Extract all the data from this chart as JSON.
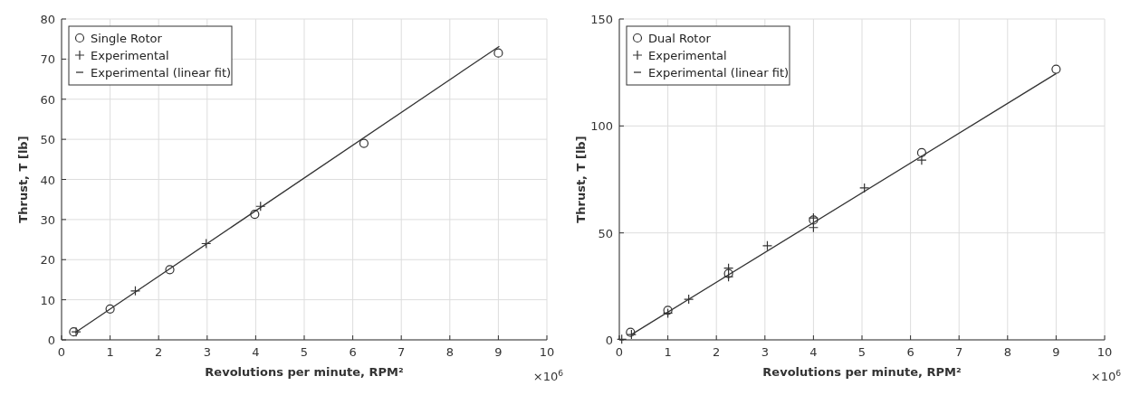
{
  "chart_data": [
    {
      "type": "scatter",
      "xlabel": "Revolutions per minute, RPM²",
      "ylabel": "Thrust, T [lb]",
      "annotations": [
        "×10$^{6}$"
      ],
      "xlim": [
        0,
        10
      ],
      "xticks": [
        0,
        1,
        2,
        3,
        4,
        5,
        6,
        7,
        8,
        9,
        10
      ],
      "ylim": [
        0,
        80
      ],
      "yticks": [
        0,
        10,
        20,
        30,
        40,
        50,
        60,
        70,
        80
      ],
      "grid": true,
      "legend": "top left",
      "series": [
        {
          "name": "Single Rotor",
          "marker": "circle",
          "color": "#333333",
          "x": [
            0.25,
            1,
            2.23,
            3.98,
            6.23,
            9
          ],
          "values": [
            2,
            7.7,
            17.5,
            31.3,
            49,
            71.5
          ]
        },
        {
          "name": "Experimental",
          "marker": "cross",
          "color": "#333333",
          "x": [
            0.3,
            1.52,
            2.98,
            4.1
          ],
          "values": [
            2,
            12.2,
            24,
            33.3
          ]
        },
        {
          "name": "Experimental (linear fit)",
          "type": "line",
          "marker": "none",
          "color": "#333333",
          "x": [
            0.28,
            9.02
          ],
          "values": [
            1.8,
            73.2
          ]
        }
      ]
    },
    {
      "type": "scatter",
      "xlabel": "Revolutions per minute, RPM²",
      "ylabel": "Thrust, T [lb]",
      "annotations": [
        "×10$^{6}$"
      ],
      "xlim": [
        0,
        10
      ],
      "xticks": [
        0,
        1,
        2,
        3,
        4,
        5,
        6,
        7,
        8,
        9,
        10
      ],
      "ylim": [
        0,
        150
      ],
      "yticks": [
        0,
        50,
        100,
        150
      ],
      "grid": true,
      "legend": "top left",
      "series": [
        {
          "name": "Dual Rotor",
          "marker": "circle",
          "color": "#333333",
          "x": [
            0.23,
            1,
            2.25,
            4,
            6.23,
            9
          ],
          "values": [
            3.5,
            13.8,
            31,
            56,
            87.5,
            126.5
          ]
        },
        {
          "name": "Experimental",
          "marker": "cross",
          "color": "#333333",
          "x": [
            0.05,
            0.25,
            1,
            1.43,
            2.25,
            2.25,
            3.05,
            4,
            4,
            5.05,
            6.23
          ],
          "values": [
            0.3,
            2.5,
            12.5,
            19,
            33.5,
            29.5,
            44,
            57,
            52.5,
            71,
            84
          ]
        },
        {
          "name": "Experimental (linear fit)",
          "type": "line",
          "marker": "none",
          "color": "#333333",
          "x": [
            0.25,
            9
          ],
          "values": [
            2.5,
            124.5
          ]
        }
      ]
    }
  ]
}
